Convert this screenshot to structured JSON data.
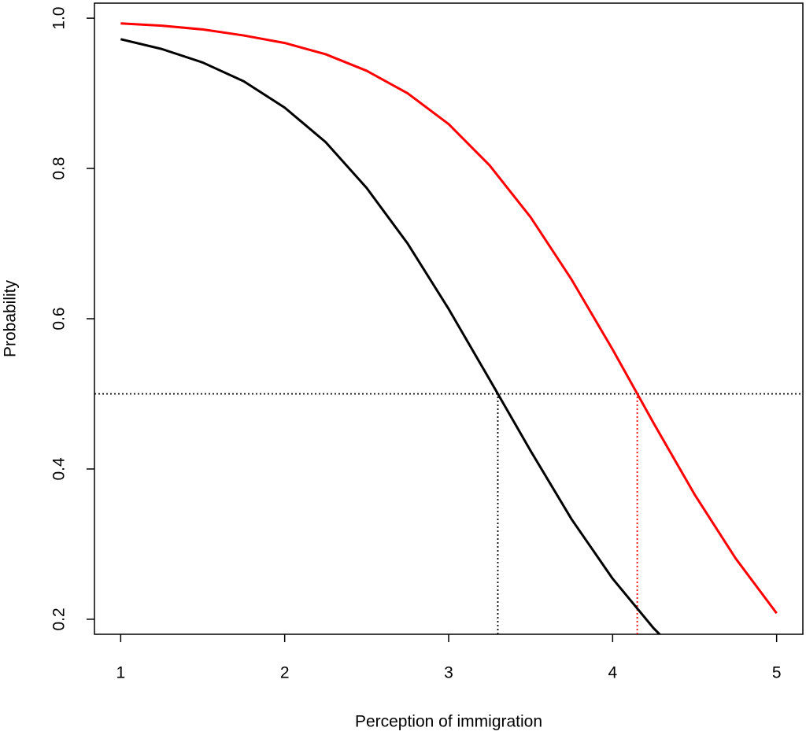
{
  "chart_data": {
    "type": "line",
    "xlabel": "Perception of immigration",
    "ylabel": "Probability",
    "xlim": [
      0.84,
      5.16
    ],
    "ylim": [
      0.18,
      1.02
    ],
    "xticks": [
      1,
      2,
      3,
      4,
      5
    ],
    "yticks": [
      0.2,
      0.4,
      0.6,
      0.8,
      {
        "value": 1,
        "label": "1.0"
      }
    ],
    "series": [
      {
        "color": "#000000",
        "x": [
          1,
          1.25,
          1.5,
          1.75,
          2,
          2.25,
          2.5,
          2.75,
          3,
          3.25,
          3.5,
          3.75,
          4,
          4.25,
          4.3
        ],
        "values": [
          0.972,
          0.959,
          0.941,
          0.916,
          0.881,
          0.835,
          0.774,
          0.7,
          0.613,
          0.519,
          0.424,
          0.333,
          0.254,
          0.188,
          0.177
        ]
      },
      {
        "color": "#ff0000",
        "x": [
          1,
          1.25,
          1.5,
          1.75,
          2,
          2.25,
          2.5,
          2.75,
          3,
          3.25,
          3.5,
          3.75,
          4,
          4.25,
          4.5,
          4.75,
          5
        ],
        "values": [
          0.993,
          0.99,
          0.985,
          0.977,
          0.967,
          0.952,
          0.93,
          0.9,
          0.859,
          0.804,
          0.735,
          0.652,
          0.559,
          0.461,
          0.366,
          0.281,
          0.208
        ]
      }
    ],
    "hline": {
      "value": 0.5,
      "color": "#000000"
    },
    "vlines": [
      {
        "value": 3.3,
        "color": "#000000"
      },
      {
        "value": 4.15,
        "color": "#ff0000"
      }
    ]
  }
}
